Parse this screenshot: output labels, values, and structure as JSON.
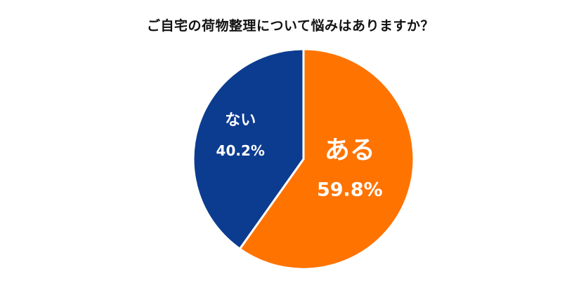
{
  "chart_data": {
    "type": "pie",
    "title": "ご自宅の荷物整理について悩みはありますか？",
    "slices": [
      {
        "label": "ある",
        "value": 59.8,
        "value_label": "59.8%",
        "color": "#ff7300"
      },
      {
        "label": "ない",
        "value": 40.2,
        "value_label": "40.2%",
        "color": "#0c3c8f"
      }
    ],
    "start_angle": "12 o'clock",
    "direction": "clockwise",
    "slice_border_color": "#ffffff",
    "legend": "none"
  }
}
